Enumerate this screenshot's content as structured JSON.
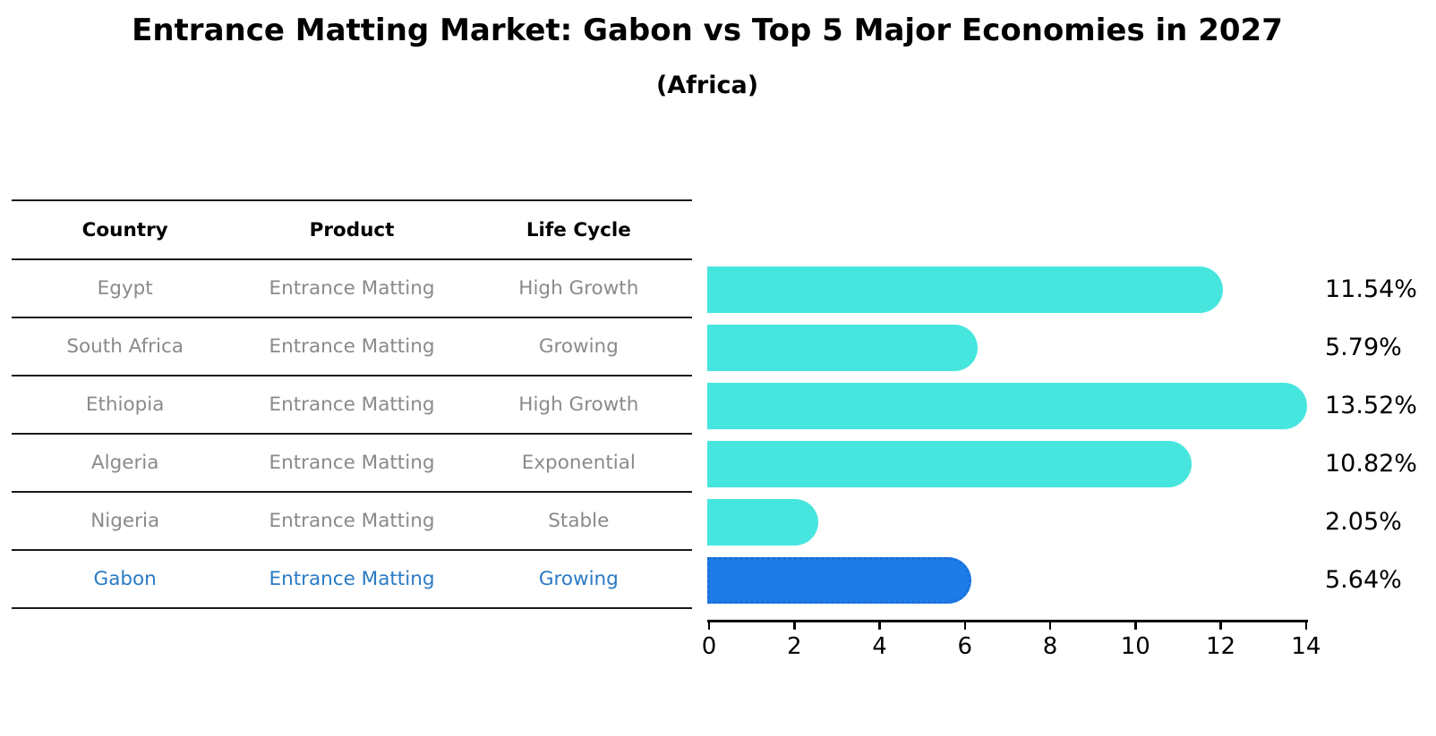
{
  "title": "Entrance Matting Market: Gabon vs Top 5 Major Economies in 2027",
  "subtitle": "(Africa)",
  "table": {
    "headers": [
      "Country",
      "Product",
      "Life Cycle"
    ],
    "rows": [
      {
        "country": "Egypt",
        "product": "Entrance Matting",
        "life_cycle": "High Growth",
        "highlight": false
      },
      {
        "country": "South Africa",
        "product": "Entrance Matting",
        "life_cycle": "Growing",
        "highlight": false
      },
      {
        "country": "Ethiopia",
        "product": "Entrance Matting",
        "life_cycle": "High Growth",
        "highlight": false
      },
      {
        "country": "Algeria",
        "product": "Entrance Matting",
        "life_cycle": "Exponential",
        "highlight": false
      },
      {
        "country": "Nigeria",
        "product": "Entrance Matting",
        "life_cycle": "Stable",
        "highlight": false
      },
      {
        "country": "Gabon",
        "product": "Entrance Matting",
        "life_cycle": "Growing",
        "highlight": true
      }
    ]
  },
  "chart_data": {
    "type": "bar",
    "orientation": "horizontal",
    "title": "Entrance Matting Market: Gabon vs Top 5 Major Economies in 2027 (Africa)",
    "categories": [
      "Egypt",
      "South Africa",
      "Ethiopia",
      "Algeria",
      "Nigeria",
      "Gabon"
    ],
    "values": [
      11.54,
      5.79,
      13.52,
      10.82,
      2.05,
      5.64
    ],
    "value_labels": [
      "11.54%",
      "5.79%",
      "13.52%",
      "10.82%",
      "2.05%",
      "5.64%"
    ],
    "xlabel": "",
    "ylabel": "",
    "xlim": [
      0,
      14
    ],
    "x_ticks": [
      0,
      2,
      4,
      6,
      8,
      10,
      12,
      14
    ],
    "grid": false,
    "legend": "none",
    "highlight_index": 5
  },
  "colors": {
    "bar": "#46E6DE",
    "highlight_bar": "#1E7CE8",
    "highlight_border": "#1A6FD8",
    "highlight_text": "#2A7AC4",
    "row_text": "#8A8A8A",
    "header_text": "#000000",
    "axis": "#000000",
    "background": "#FFFFFF"
  }
}
